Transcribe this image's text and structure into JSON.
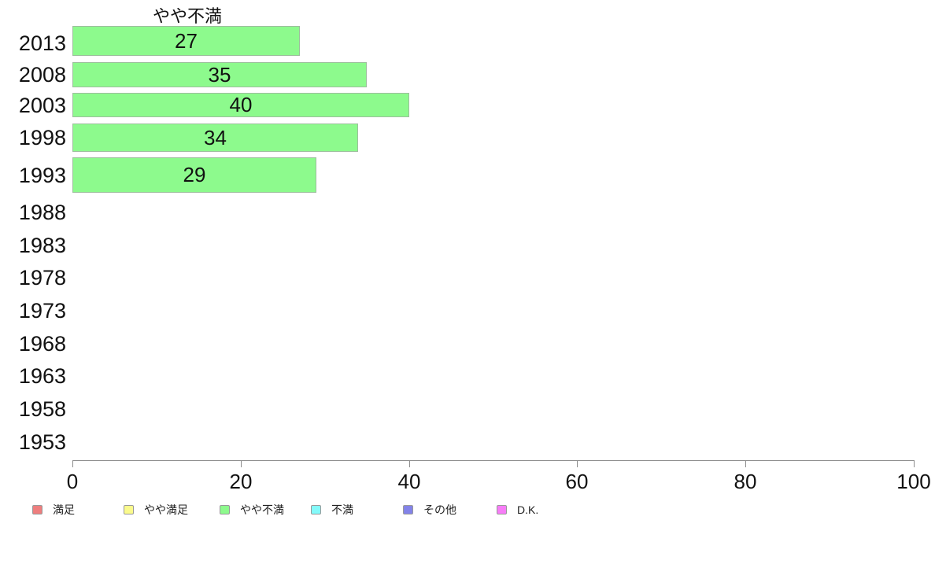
{
  "chart_data": {
    "type": "bar",
    "orientation": "horizontal",
    "title": "やや不満",
    "categories": [
      "2013",
      "2008",
      "2003",
      "1998",
      "1993",
      "1988",
      "1983",
      "1978",
      "1973",
      "1968",
      "1963",
      "1958",
      "1953"
    ],
    "values": [
      27,
      35,
      40,
      34,
      29,
      null,
      null,
      null,
      null,
      null,
      null,
      null,
      null
    ],
    "xlim": [
      0,
      100
    ],
    "x_ticks": [
      "0",
      "20",
      "40",
      "60",
      "80",
      "100"
    ],
    "grid": false,
    "bar_fill_color": "#8dfa8d",
    "bar_border_color": "#9dbe9d",
    "axis_color": "#8c8c8c",
    "legend_position": "bottom",
    "legend": [
      {
        "label": "満足",
        "color": "#ee7e7e"
      },
      {
        "label": "やや満足",
        "color": "#fafa8c"
      },
      {
        "label": "やや不満",
        "color": "#8dfa8d"
      },
      {
        "label": "不満",
        "color": "#84fafa"
      },
      {
        "label": "その他",
        "color": "#8383e8"
      },
      {
        "label": "D.K.",
        "color": "#f77df7"
      }
    ]
  }
}
